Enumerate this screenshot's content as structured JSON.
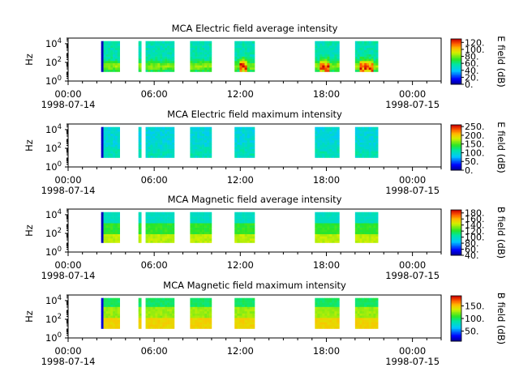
{
  "chart_data": [
    {
      "type": "heatmap",
      "title": "MCA  Electric field average intensity",
      "ylabel": "Hz",
      "y_scale": "log",
      "ylim": [
        1,
        40000
      ],
      "y_ticks": [
        {
          "base": "10",
          "exp": "0"
        },
        {
          "base": "10",
          "exp": "2"
        },
        {
          "base": "10",
          "exp": "4"
        }
      ],
      "x_ticks": [
        "00:00",
        "06:00",
        "12:00",
        "18:00",
        "00:00"
      ],
      "x_sublabels": [
        "1998-07-14",
        "",
        "",
        "",
        "1998-07-15"
      ],
      "colorbar": {
        "label": "E field (dB)",
        "range": [
          0,
          130
        ],
        "ticks": [
          "0.",
          "20.",
          "40.",
          "60.",
          "80.",
          "100.",
          "120."
        ]
      },
      "data_intervals_hours": [
        [
          2.3,
          3.6
        ],
        [
          4.9,
          5.1
        ],
        [
          5.4,
          7.4
        ],
        [
          8.5,
          10.0
        ],
        [
          11.6,
          13.0
        ],
        [
          17.2,
          18.9
        ],
        [
          20.0,
          21.6
        ]
      ],
      "style": "elec-avg"
    },
    {
      "type": "heatmap",
      "title": "MCA  Electric field maximum intensity",
      "ylabel": "Hz",
      "y_scale": "log",
      "ylim": [
        1,
        40000
      ],
      "y_ticks": [
        {
          "base": "10",
          "exp": "0"
        },
        {
          "base": "10",
          "exp": "2"
        },
        {
          "base": "10",
          "exp": "4"
        }
      ],
      "x_ticks": [
        "00:00",
        "06:00",
        "12:00",
        "18:00",
        "00:00"
      ],
      "x_sublabels": [
        "1998-07-14",
        "",
        "",
        "",
        "1998-07-15"
      ],
      "colorbar": {
        "label": "E field (dB)",
        "range": [
          0,
          260
        ],
        "ticks": [
          "0.",
          "50.",
          "100.",
          "150.",
          "200.",
          "250."
        ]
      },
      "data_intervals_hours": [
        [
          2.3,
          3.6
        ],
        [
          4.9,
          5.1
        ],
        [
          5.4,
          7.4
        ],
        [
          8.5,
          10.0
        ],
        [
          11.6,
          13.0
        ],
        [
          17.2,
          18.9
        ],
        [
          20.0,
          21.6
        ]
      ],
      "style": "elec-max"
    },
    {
      "type": "heatmap",
      "title": "MCA  Magnetic field average intensity",
      "ylabel": "Hz",
      "y_scale": "log",
      "ylim": [
        1,
        40000
      ],
      "y_ticks": [
        {
          "base": "10",
          "exp": "0"
        },
        {
          "base": "10",
          "exp": "2"
        },
        {
          "base": "10",
          "exp": "4"
        }
      ],
      "x_ticks": [
        "00:00",
        "06:00",
        "12:00",
        "18:00",
        "00:00"
      ],
      "x_sublabels": [
        "1998-07-14",
        "",
        "",
        "",
        "1998-07-15"
      ],
      "colorbar": {
        "label": "B field (dB)",
        "range": [
          40,
          190
        ],
        "ticks": [
          "40.",
          "60.",
          "80.",
          "100.",
          "120.",
          "140.",
          "160.",
          "180."
        ]
      },
      "data_intervals_hours": [
        [
          2.3,
          3.6
        ],
        [
          4.9,
          5.1
        ],
        [
          5.4,
          7.4
        ],
        [
          8.5,
          10.0
        ],
        [
          11.6,
          13.0
        ],
        [
          17.2,
          18.9
        ],
        [
          20.0,
          21.6
        ]
      ],
      "style": "mag-avg"
    },
    {
      "type": "heatmap",
      "title": "MCA  Magnetic field maximum intensity",
      "ylabel": "Hz",
      "y_scale": "log",
      "ylim": [
        1,
        40000
      ],
      "y_ticks": [
        {
          "base": "10",
          "exp": "0"
        },
        {
          "base": "10",
          "exp": "2"
        },
        {
          "base": "10",
          "exp": "4"
        }
      ],
      "x_ticks": [
        "00:00",
        "06:00",
        "12:00",
        "18:00",
        "00:00"
      ],
      "x_sublabels": [
        "1998-07-14",
        "",
        "",
        "",
        "1998-07-15"
      ],
      "colorbar": {
        "label": "B field (dB)",
        "range": [
          10,
          190
        ],
        "ticks": [
          "50.",
          "100.",
          "150."
        ]
      },
      "data_intervals_hours": [
        [
          2.3,
          3.6
        ],
        [
          4.9,
          5.1
        ],
        [
          5.4,
          7.4
        ],
        [
          8.5,
          10.0
        ],
        [
          11.6,
          13.0
        ],
        [
          17.2,
          18.9
        ],
        [
          20.0,
          21.6
        ]
      ],
      "style": "mag-max"
    }
  ]
}
